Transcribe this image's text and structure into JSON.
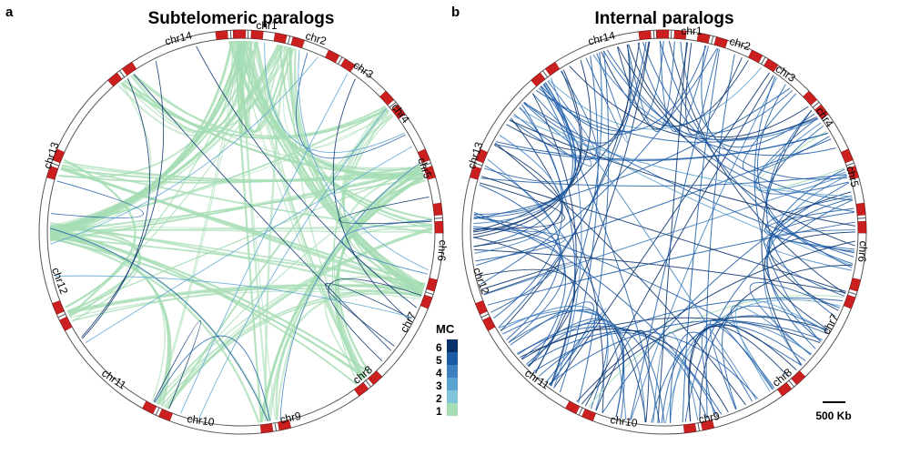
{
  "panels": [
    {
      "letter": "a",
      "title": "Subtelomeric paralogs",
      "chromosomes": [
        "chr1",
        "chr2",
        "chr3",
        "chr4",
        "chr5",
        "chr6",
        "chr7",
        "chr8",
        "chr9",
        "chr10",
        "chr11",
        "chr12",
        "chr13",
        "chr14"
      ],
      "link_style": "mostly MC 1 (light green), few MC 3-6 (blue)"
    },
    {
      "letter": "b",
      "title": "Internal paralogs",
      "chromosomes": [
        "chr1",
        "chr2",
        "chr3",
        "chr4",
        "chr5",
        "chr6",
        "chr7",
        "chr8",
        "chr9",
        "chr10",
        "chr11",
        "chr12",
        "chr13",
        "chr14"
      ],
      "link_style": "mostly MC 4-6 (dark blue)"
    }
  ],
  "legend": {
    "title": "MC",
    "levels": [
      "6",
      "5",
      "4",
      "3",
      "2",
      "1"
    ],
    "colors": [
      "#08306b",
      "#1c5aa6",
      "#3f7fc0",
      "#5ba3d0",
      "#7fc4d8",
      "#a6ddb4"
    ]
  },
  "scale_bar": {
    "label": "500 Kb"
  },
  "colors": {
    "telomere_block": "#cc1f1f",
    "ring_outline": "#555555",
    "mc1": "#a6ddb4",
    "mc_dark": "#1f4e96"
  }
}
